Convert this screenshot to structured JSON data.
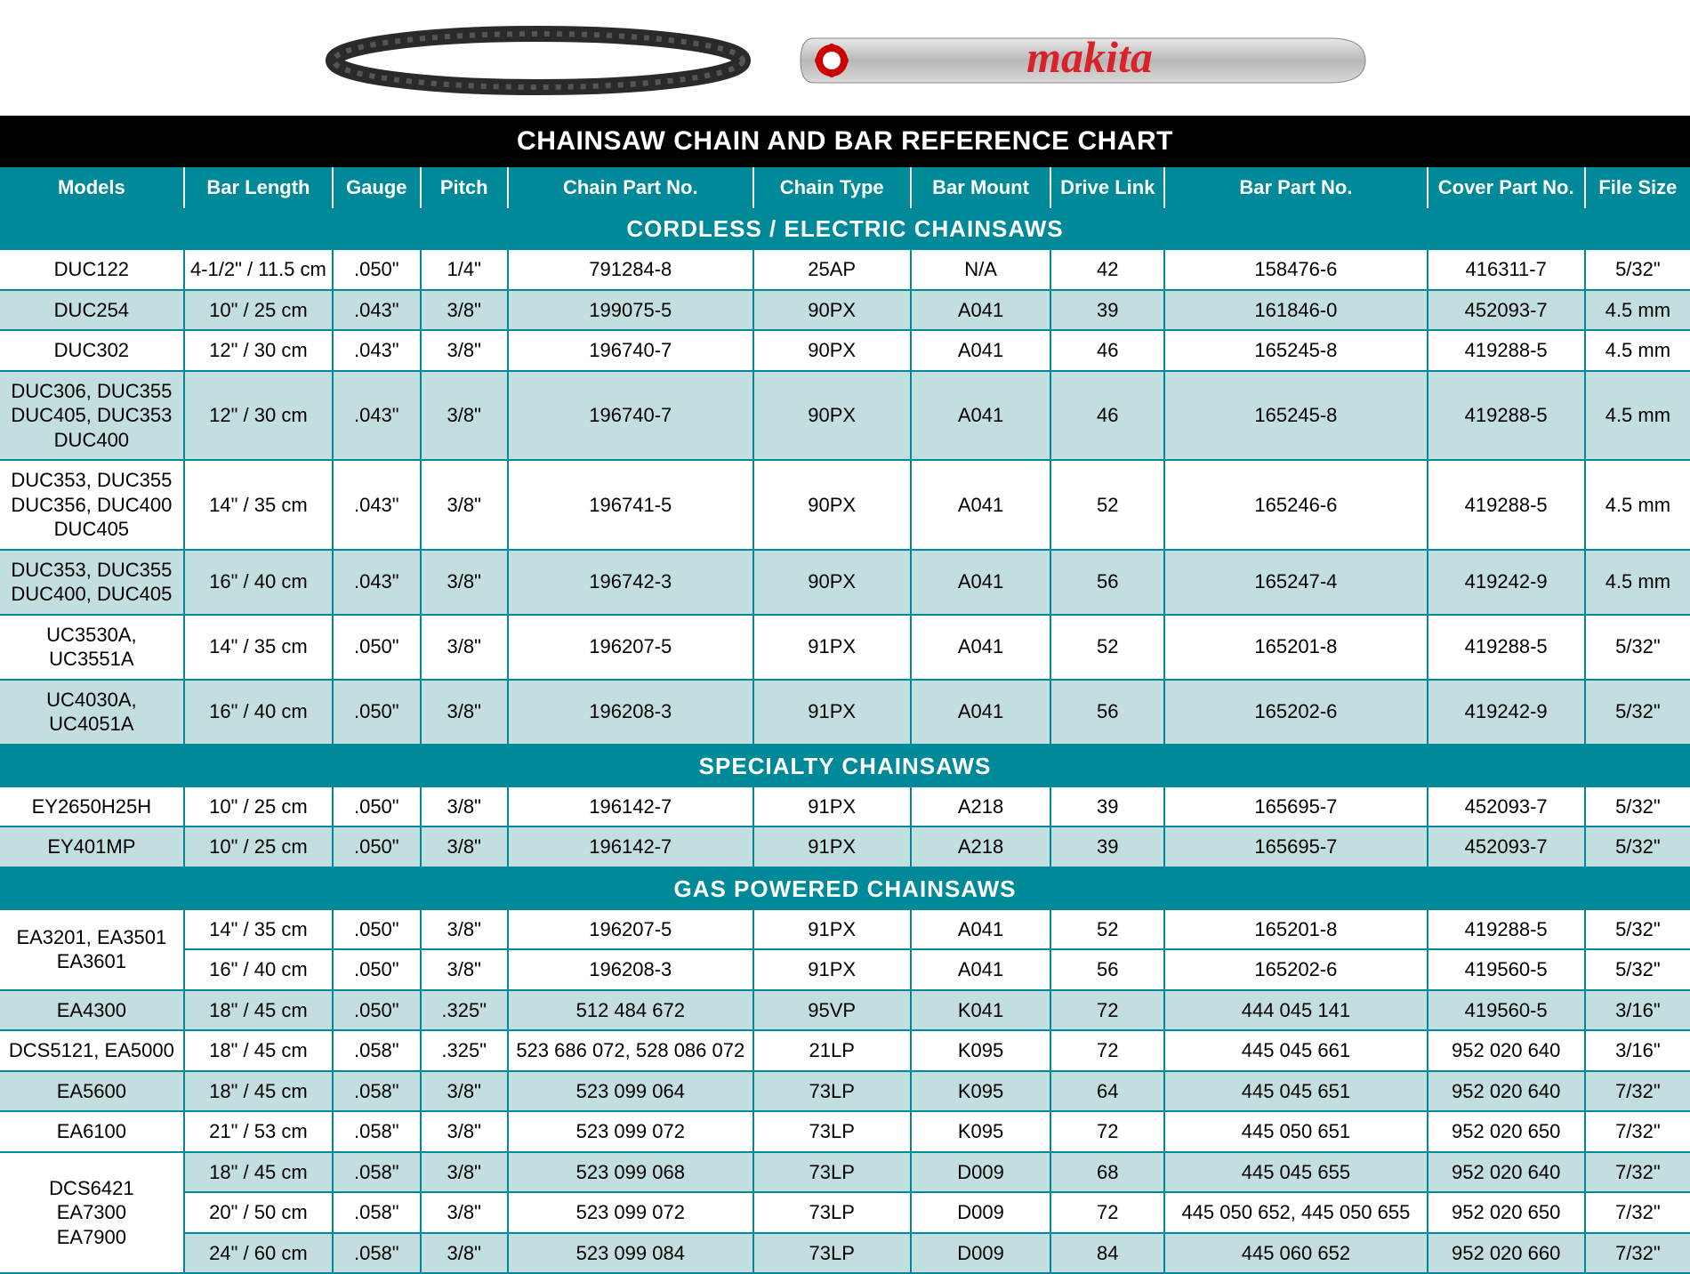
{
  "brand": "makita",
  "title": "CHAINSAW CHAIN AND BAR REFERENCE CHART",
  "colors": {
    "title_bg": "#000000",
    "header_bg": "#008a99",
    "tint_bg": "#c2dedf",
    "white_bg": "#ffffff",
    "text": "#000000",
    "header_text": "#ffffff",
    "brand_red": "#d8232a",
    "border": "#008a99"
  },
  "columns": [
    "Models",
    "Bar Length",
    "Gauge",
    "Pitch",
    "Chain Part No.",
    "Chain Type",
    "Bar Mount",
    "Drive Link",
    "Bar Part No.",
    "Cover Part No.",
    "File Size"
  ],
  "sections": [
    {
      "title": "CORDLESS / ELECTRIC CHAINSAWS",
      "rows": [
        {
          "shade": "white",
          "cells": [
            "DUC122",
            "4-1/2\" / 11.5 cm",
            ".050\"",
            "1/4\"",
            "791284-8",
            "25AP",
            "N/A",
            "42",
            "158476-6",
            "416311-7",
            "5/32\""
          ]
        },
        {
          "shade": "tint",
          "cells": [
            "DUC254",
            "10\" / 25 cm",
            ".043\"",
            "3/8\"",
            "199075-5",
            "90PX",
            "A041",
            "39",
            "161846-0",
            "452093-7",
            "4.5 mm"
          ]
        },
        {
          "shade": "white",
          "cells": [
            "DUC302",
            "12\" / 30 cm",
            ".043\"",
            "3/8\"",
            "196740-7",
            "90PX",
            "A041",
            "46",
            "165245-8",
            "419288-5",
            "4.5 mm"
          ]
        },
        {
          "shade": "tint",
          "cells": [
            "DUC306, DUC355\nDUC405, DUC353\nDUC400",
            "12\" / 30 cm",
            ".043\"",
            "3/8\"",
            "196740-7",
            "90PX",
            "A041",
            "46",
            "165245-8",
            "419288-5",
            "4.5 mm"
          ]
        },
        {
          "shade": "white",
          "cells": [
            "DUC353, DUC355\nDUC356, DUC400\nDUC405",
            "14\" / 35 cm",
            ".043\"",
            "3/8\"",
            "196741-5",
            "90PX",
            "A041",
            "52",
            "165246-6",
            "419288-5",
            "4.5 mm"
          ]
        },
        {
          "shade": "tint",
          "cells": [
            "DUC353, DUC355\nDUC400, DUC405",
            "16\" / 40 cm",
            ".043\"",
            "3/8\"",
            "196742-3",
            "90PX",
            "A041",
            "56",
            "165247-4",
            "419242-9",
            "4.5 mm"
          ]
        },
        {
          "shade": "white",
          "cells": [
            "UC3530A, UC3551A",
            "14\" / 35 cm",
            ".050\"",
            "3/8\"",
            "196207-5",
            "91PX",
            "A041",
            "52",
            "165201-8",
            "419288-5",
            "5/32\""
          ]
        },
        {
          "shade": "tint",
          "cells": [
            "UC4030A, UC4051A",
            "16\" / 40 cm",
            ".050\"",
            "3/8\"",
            "196208-3",
            "91PX",
            "A041",
            "56",
            "165202-6",
            "419242-9",
            "5/32\""
          ]
        }
      ]
    },
    {
      "title": "SPECIALTY CHAINSAWS",
      "rows": [
        {
          "shade": "white",
          "cells": [
            "EY2650H25H",
            "10\" / 25 cm",
            ".050\"",
            "3/8\"",
            "196142-7",
            "91PX",
            "A218",
            "39",
            "165695-7",
            "452093-7",
            "5/32\""
          ]
        },
        {
          "shade": "tint",
          "cells": [
            "EY401MP",
            "10\" / 25 cm",
            ".050\"",
            "3/8\"",
            "196142-7",
            "91PX",
            "A218",
            "39",
            "165695-7",
            "452093-7",
            "5/32\""
          ]
        }
      ]
    },
    {
      "title": "GAS POWERED CHAINSAWS",
      "rows": [
        {
          "shade": "white",
          "rowspan_models": 2,
          "cells": [
            "EA3201, EA3501\nEA3601",
            "14\" / 35 cm",
            ".050\"",
            "3/8\"",
            "196207-5",
            "91PX",
            "A041",
            "52",
            "165201-8",
            "419288-5",
            "5/32\""
          ]
        },
        {
          "shade": "white",
          "skip_models": true,
          "cells": [
            "",
            "16\" / 40 cm",
            ".050\"",
            "3/8\"",
            "196208-3",
            "91PX",
            "A041",
            "56",
            "165202-6",
            "419560-5",
            "5/32\""
          ]
        },
        {
          "shade": "tint",
          "cells": [
            "EA4300",
            "18\" / 45 cm",
            ".050\"",
            ".325\"",
            "512 484 672",
            "95VP",
            "K041",
            "72",
            "444 045 141",
            "419560-5",
            "3/16\""
          ]
        },
        {
          "shade": "white",
          "cells": [
            "DCS5121, EA5000",
            "18\" / 45 cm",
            ".058\"",
            ".325\"",
            "523 686 072, 528 086 072",
            "21LP",
            "K095",
            "72",
            "445 045 661",
            "952 020 640",
            "3/16\""
          ]
        },
        {
          "shade": "tint",
          "cells": [
            "EA5600",
            "18\" / 45 cm",
            ".058\"",
            "3/8\"",
            "523 099 064",
            "73LP",
            "K095",
            "64",
            "445 045 651",
            "952 020 640",
            "7/32\""
          ]
        },
        {
          "shade": "white",
          "cells": [
            "EA6100",
            "21\" / 53 cm",
            ".058\"",
            "3/8\"",
            "523 099 072",
            "73LP",
            "K095",
            "72",
            "445 050 651",
            "952 020 650",
            "7/32\""
          ]
        },
        {
          "shade": "tint",
          "rowspan_models": 3,
          "cells": [
            "DCS6421\nEA7300\nEA7900",
            "18\" / 45 cm",
            ".058\"",
            "3/8\"",
            "523 099 068",
            "73LP",
            "D009",
            "68",
            "445 045 655",
            "952 020 640",
            "7/32\""
          ]
        },
        {
          "shade": "white",
          "skip_models": true,
          "cells": [
            "",
            "20\" / 50 cm",
            ".058\"",
            "3/8\"",
            "523 099 072",
            "73LP",
            "D009",
            "72",
            "445 050 652, 445 050 655",
            "952 020 650",
            "7/32\""
          ]
        },
        {
          "shade": "tint",
          "skip_models": true,
          "cells": [
            "",
            "24\" / 60 cm",
            ".058\"",
            "3/8\"",
            "523 099 084",
            "73LP",
            "D009",
            "84",
            "445 060 652",
            "952 020 660",
            "7/32\""
          ]
        }
      ]
    }
  ]
}
